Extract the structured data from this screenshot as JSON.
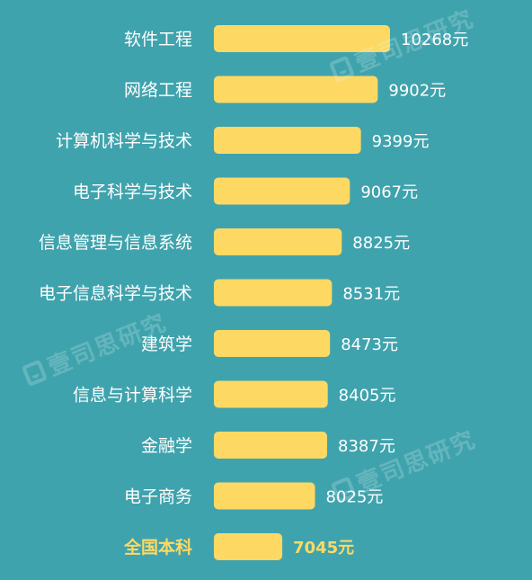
{
  "chart_data": {
    "type": "bar",
    "orientation": "horizontal",
    "title": "",
    "xlabel": "",
    "ylabel": "",
    "value_suffix": "元",
    "xlim": [
      0,
      10268
    ],
    "categories": [
      "软件工程",
      "网络工程",
      "计算机科学与技术",
      "电子科学与技术",
      "信息管理与信息系统",
      "电子信息科学与技术",
      "建筑学",
      "信息与计算科学",
      "金融学",
      "电子商务",
      "全国本科"
    ],
    "values": [
      10268,
      9902,
      9399,
      9067,
      8825,
      8531,
      8473,
      8405,
      8387,
      8025,
      7045
    ],
    "highlight_index": 10,
    "colors": {
      "background": "#3fa3ad",
      "bar": "#fdd964",
      "label": "#ffffff",
      "highlight_label": "#fdd964"
    }
  },
  "watermark": {
    "text": "壹司思研究",
    "icon": "watermark-logo-icon"
  }
}
